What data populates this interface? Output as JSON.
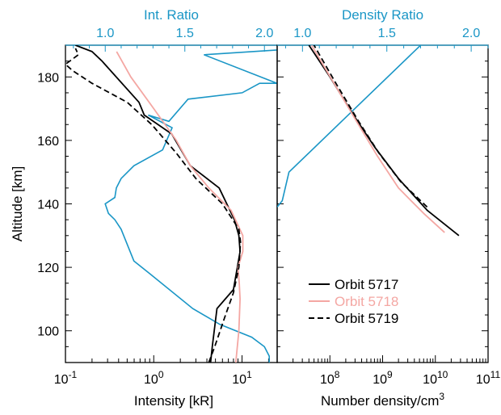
{
  "chart_data": [
    {
      "type": "line",
      "panel": "left",
      "xlabel": "Intensity [kR]",
      "ylabel": "Altitude [km]",
      "x_scale": "log",
      "xlim": [
        0.1,
        25
      ],
      "ylim": [
        90,
        190
      ],
      "x_ticks": [
        {
          "value": 0.1,
          "mant": "10",
          "exp": "-1"
        },
        {
          "value": 1,
          "mant": "10",
          "exp": "0"
        },
        {
          "value": 10,
          "mant": "10",
          "exp": "1"
        }
      ],
      "y_ticks": [
        100,
        120,
        140,
        160,
        180
      ],
      "top_axis": {
        "label": "Int. Ratio",
        "range": [
          0.75,
          2.08
        ],
        "ticks": [
          {
            "value": 1.0,
            "label": "1.0"
          },
          {
            "value": 1.5,
            "label": "1.5"
          },
          {
            "value": 2.0,
            "label": "2.0"
          }
        ],
        "color": "#1a96c6"
      },
      "series": [
        {
          "name": "Orbit 5717",
          "color": "#000000",
          "dash": "solid",
          "x": [
            4.4,
            4.6,
            5.2,
            8.0,
            9.5,
            9.2,
            8.2,
            5.5,
            2.6,
            1.6,
            0.78,
            0.68,
            0.26,
            0.2,
            0.13
          ],
          "y": [
            90,
            95,
            107,
            113,
            125,
            130,
            135,
            145,
            152,
            162,
            168,
            172,
            185,
            188,
            190
          ]
        },
        {
          "name": "Orbit 5718",
          "color": "#f4a7a3",
          "dash": "solid",
          "x": [
            8.5,
            9.2,
            9.5,
            9.3,
            9.0,
            10.2,
            10.2,
            7.5,
            4.2,
            2.6,
            1.8,
            1.0,
            0.55,
            0.38
          ],
          "y": [
            90,
            100,
            110,
            115,
            120,
            125,
            130,
            138,
            145,
            152,
            160,
            170,
            180,
            188
          ]
        },
        {
          "name": "Orbit 5719",
          "color": "#000000",
          "dash": "dashed",
          "x": [
            4.2,
            4.9,
            6.5,
            8.0,
            9.2,
            9.6,
            9.2,
            6.0,
            3.0,
            1.8,
            0.95,
            0.5,
            0.2,
            0.12,
            0.1,
            0.14,
            0.13
          ],
          "y": [
            90,
            95,
            105,
            112,
            120,
            128,
            132,
            140,
            148,
            156,
            165,
            172,
            178,
            182,
            184,
            187,
            189
          ]
        }
      ],
      "ratio_series": {
        "color": "#1a96c6",
        "x": [
          2.03,
          2.03,
          2.0,
          1.92,
          1.72,
          1.55,
          1.28,
          1.18,
          1.1,
          1.06,
          1.02,
          1.0,
          1.06,
          1.07,
          1.1,
          1.18,
          1.36,
          1.42,
          1.27,
          1.4,
          1.52,
          1.86,
          1.97,
          2.08,
          1.62,
          2.08
        ],
        "y": [
          90,
          92,
          95,
          98,
          102,
          107,
          118,
          122,
          132,
          135,
          137,
          140,
          142,
          145,
          148,
          152,
          157,
          164,
          168,
          166,
          173,
          175,
          178,
          178,
          187,
          188.5
        ]
      }
    },
    {
      "type": "line",
      "panel": "right",
      "xlabel": "Number density/cm",
      "xlabel_sup": "3",
      "x_scale": "log",
      "xlim": [
        10000000,
        100000000000
      ],
      "ylim": [
        90,
        190
      ],
      "x_ticks": [
        {
          "value": 100000000,
          "mant": "10",
          "exp": "8"
        },
        {
          "value": 1000000000,
          "mant": "10",
          "exp": "9"
        },
        {
          "value": 10000000000,
          "mant": "10",
          "exp": "10"
        },
        {
          "value": 100000000000,
          "mant": "10",
          "exp": "11"
        }
      ],
      "top_axis": {
        "label": "Density Ratio",
        "range": [
          0.85,
          2.1
        ],
        "ticks": [
          {
            "value": 1.0,
            "label": "1.0"
          },
          {
            "value": 1.5,
            "label": "1.5"
          },
          {
            "value": 2.0,
            "label": "2.0"
          }
        ],
        "color": "#1a96c6"
      },
      "series": [
        {
          "name": "Orbit 5717",
          "color": "#000000",
          "dash": "solid",
          "x": [
            28000000000,
            7000000000,
            2000000000,
            700000000,
            280000000,
            100000000,
            40000000
          ],
          "y": [
            130,
            138,
            148,
            158,
            168,
            180,
            190
          ]
        },
        {
          "name": "Orbit 5718",
          "color": "#f4a7a3",
          "dash": "solid",
          "x": [
            15000000000,
            6000000000,
            2000000000,
            800000000,
            320000000,
            120000000,
            45000000
          ],
          "y": [
            131,
            137,
            145,
            155,
            166,
            178,
            190
          ]
        },
        {
          "name": "Orbit 5719",
          "color": "#000000",
          "dash": "dashed",
          "x": [
            7000000000,
            2200000000,
            850000000,
            350000000,
            130000000,
            50000000
          ],
          "y": [
            139,
            147,
            156,
            166,
            178,
            190
          ]
        }
      ],
      "ratio_series": {
        "color": "#1a96c6",
        "x": [
          0.85,
          0.88,
          0.92,
          1.7
        ],
        "y": [
          139,
          141,
          150,
          190
        ]
      }
    }
  ],
  "legend": [
    {
      "label": "Orbit 5717",
      "color": "#000000",
      "dash": "solid"
    },
    {
      "label": "Orbit 5718",
      "color": "#f4a7a3",
      "dash": "solid"
    },
    {
      "label": "Orbit 5719",
      "color": "#000000",
      "dash": "dashed"
    }
  ]
}
